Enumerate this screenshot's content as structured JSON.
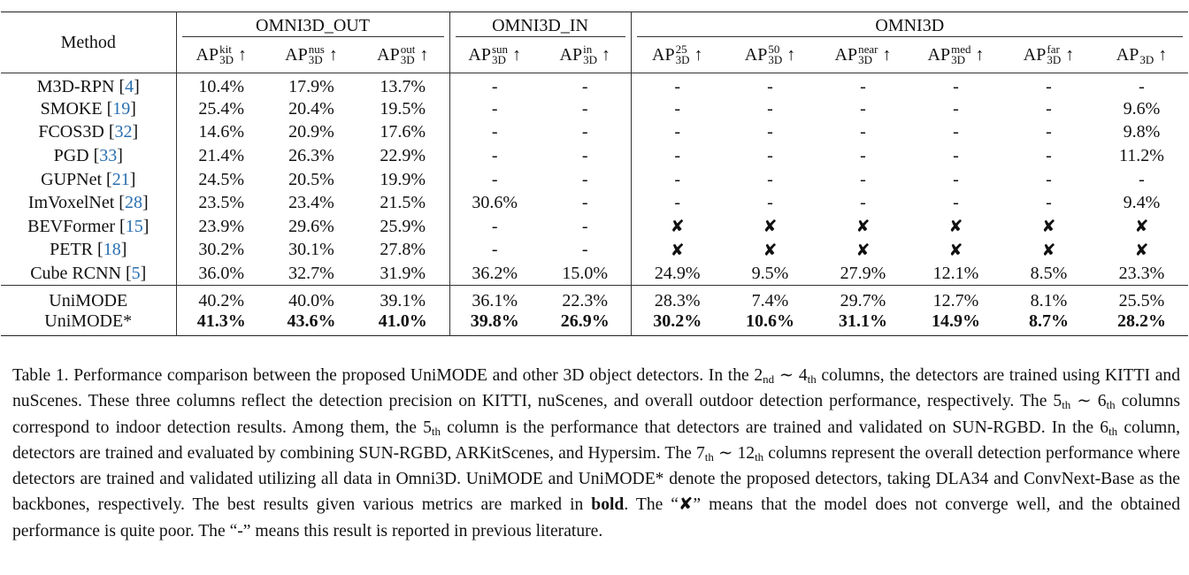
{
  "table": {
    "method_header": "Method",
    "groups": [
      "OMNI3D_OUT",
      "OMNI3D_IN",
      "OMNI3D"
    ],
    "group_spans": [
      3,
      2,
      6
    ],
    "columns": [
      {
        "base": "AP",
        "sup": "kit",
        "sub": "3D",
        "arrow": "↑"
      },
      {
        "base": "AP",
        "sup": "nus",
        "sub": "3D",
        "arrow": "↑"
      },
      {
        "base": "AP",
        "sup": "out",
        "sub": "3D",
        "arrow": "↑"
      },
      {
        "base": "AP",
        "sup": "sun",
        "sub": "3D",
        "arrow": "↑"
      },
      {
        "base": "AP",
        "sup": "in",
        "sub": "3D",
        "arrow": "↑"
      },
      {
        "base": "AP",
        "sup": "25",
        "sub": "3D",
        "arrow": "↑"
      },
      {
        "base": "AP",
        "sup": "50",
        "sub": "3D",
        "arrow": "↑"
      },
      {
        "base": "AP",
        "sup": "near",
        "sub": "3D",
        "arrow": "↑"
      },
      {
        "base": "AP",
        "sup": "med",
        "sub": "3D",
        "arrow": "↑"
      },
      {
        "base": "AP",
        "sup": "far",
        "sub": "3D",
        "arrow": "↑"
      },
      {
        "base": "AP",
        "sub": "3D",
        "arrow": "↑"
      }
    ],
    "sections": [
      [
        {
          "method": "M3D-RPN [",
          "ref": "4",
          "close": "]",
          "values": [
            "10.4%",
            "17.9%",
            "13.7%",
            "-",
            "-",
            "-",
            "-",
            "-",
            "-",
            "-",
            "-"
          ]
        },
        {
          "method": "SMOKE [",
          "ref": "19",
          "close": "]",
          "values": [
            "25.4%",
            "20.4%",
            "19.5%",
            "-",
            "-",
            "-",
            "-",
            "-",
            "-",
            "-",
            "9.6%"
          ]
        },
        {
          "method": "FCOS3D [",
          "ref": "32",
          "close": "]",
          "values": [
            "14.6%",
            "20.9%",
            "17.6%",
            "-",
            "-",
            "-",
            "-",
            "-",
            "-",
            "-",
            "9.8%"
          ]
        },
        {
          "method": "PGD [",
          "ref": "33",
          "close": "]",
          "values": [
            "21.4%",
            "26.3%",
            "22.9%",
            "-",
            "-",
            "-",
            "-",
            "-",
            "-",
            "-",
            "11.2%"
          ]
        },
        {
          "method": "GUPNet [",
          "ref": "21",
          "close": "]",
          "values": [
            "24.5%",
            "20.5%",
            "19.9%",
            "-",
            "-",
            "-",
            "-",
            "-",
            "-",
            "-",
            "-"
          ]
        },
        {
          "method": "ImVoxelNet [",
          "ref": "28",
          "close": "]",
          "values": [
            "23.5%",
            "23.4%",
            "21.5%",
            "30.6%",
            "-",
            "-",
            "-",
            "-",
            "-",
            "-",
            "9.4%"
          ]
        },
        {
          "method": "BEVFormer [",
          "ref": "15",
          "close": "]",
          "values": [
            "23.9%",
            "29.6%",
            "25.9%",
            "-",
            "-",
            "✘",
            "✘",
            "✘",
            "✘",
            "✘",
            "✘"
          ]
        },
        {
          "method": "PETR [",
          "ref": "18",
          "close": "]",
          "values": [
            "30.2%",
            "30.1%",
            "27.8%",
            "-",
            "-",
            "✘",
            "✘",
            "✘",
            "✘",
            "✘",
            "✘"
          ]
        },
        {
          "method": "Cube RCNN [",
          "ref": "5",
          "close": "]",
          "values": [
            "36.0%",
            "32.7%",
            "31.9%",
            "36.2%",
            "15.0%",
            "24.9%",
            "9.5%",
            "27.9%",
            "12.1%",
            "8.5%",
            "23.3%"
          ]
        }
      ],
      [
        {
          "method": "UniMODE",
          "values": [
            "40.2%",
            "40.0%",
            "39.1%",
            "36.1%",
            "22.3%",
            "28.3%",
            "7.4%",
            "29.7%",
            "12.7%",
            "8.1%",
            "25.5%"
          ]
        },
        {
          "method": "UniMODE*",
          "bold": true,
          "values": [
            "41.3%",
            "43.6%",
            "41.0%",
            "39.8%",
            "26.9%",
            "30.2%",
            "10.6%",
            "31.1%",
            "14.9%",
            "8.7%",
            "28.2%"
          ]
        }
      ]
    ]
  },
  "caption": [
    {
      "text": "Table 1.  Performance comparison between the proposed UniMODE and other 3D object detectors.  In the 2"
    },
    {
      "sub": "nd"
    },
    {
      "text": " ∼ 4"
    },
    {
      "sub": "th"
    },
    {
      "text": " columns, the detectors are trained using KITTI and nuScenes.  These three columns reflect the detection precision on KITTI, nuScenes, and overall outdoor detection performance, respectively.  The 5"
    },
    {
      "sub": "th"
    },
    {
      "text": " ∼ 6"
    },
    {
      "sub": "th"
    },
    {
      "text": " columns correspond to indoor detection results.  Among them, the 5"
    },
    {
      "sub": "th"
    },
    {
      "text": " column is the performance that detectors are trained and validated on SUN-RGBD. In the 6"
    },
    {
      "sub": "th"
    },
    {
      "text": " column, detectors are trained and evaluated by combining SUN-RGBD, ARKitScenes, and Hypersim. The 7"
    },
    {
      "sub": "th"
    },
    {
      "text": " ∼ 12"
    },
    {
      "sub": "th"
    },
    {
      "text": " columns represent the overall detection performance where detectors are trained and validated utilizing all data in Omni3D. UniMODE and UniMODE* denote the proposed detectors, taking DLA34 and ConvNext-Base as the backbones, respectively. The best results given various metrics are marked in "
    },
    {
      "bold": "bold"
    },
    {
      "text": ". The “✘” means that the model does not converge well, and the obtained performance is quite poor. The “-” means this result is reported in previous literature."
    }
  ]
}
